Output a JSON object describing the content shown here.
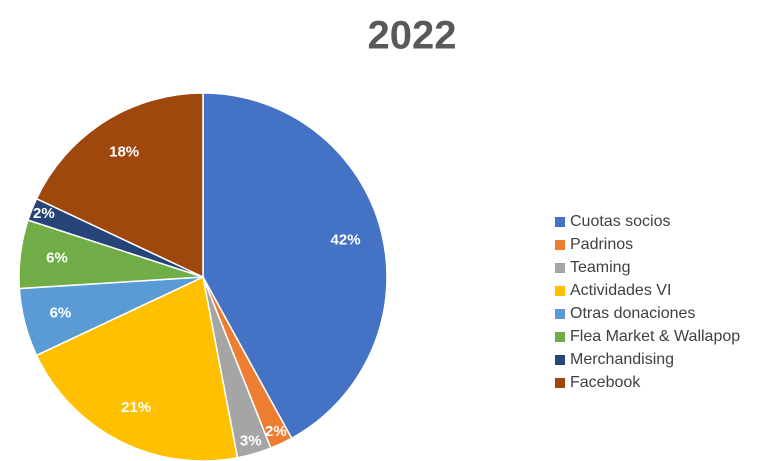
{
  "chart_data": {
    "type": "pie",
    "title": "2022",
    "categories": [
      "Cuotas socios",
      "Padrinos",
      "Teaming",
      "Actividades VI",
      "Otras donaciones",
      "Flea Market & Wallapop",
      "Merchandising",
      "Facebook"
    ],
    "values": [
      42,
      2,
      3,
      21,
      6,
      6,
      2,
      18
    ],
    "value_labels": [
      "42%",
      "2%",
      "3%",
      "21%",
      "6%",
      "6%",
      "2%",
      "18%"
    ],
    "colors": [
      "#4472c4",
      "#ed7d31",
      "#a5a5a5",
      "#ffc000",
      "#5b9bd5",
      "#70ad47",
      "#264478",
      "#9e480e"
    ],
    "legend": "right"
  }
}
